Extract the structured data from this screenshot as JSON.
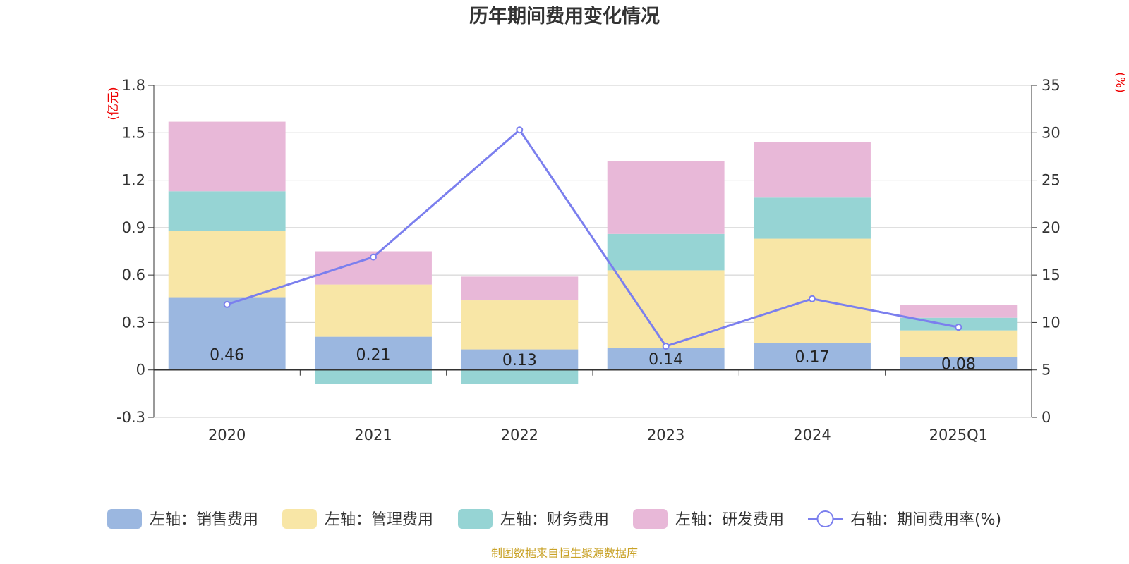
{
  "chart_data": {
    "type": "bar",
    "title": "历年期间费用变化情况",
    "categories": [
      "2020",
      "2021",
      "2022",
      "2023",
      "2024",
      "2025Q1"
    ],
    "left_axis": {
      "unit": "(亿元)",
      "ylim": [
        -0.3,
        1.8
      ],
      "ticks": [
        "-0.3",
        "0",
        "0.3",
        "0.6",
        "0.9",
        "1.2",
        "1.5",
        "1.8"
      ]
    },
    "right_axis": {
      "unit": "(%)",
      "ylim": [
        0,
        35
      ],
      "ticks": [
        "0",
        "5",
        "10",
        "15",
        "20",
        "25",
        "30",
        "35"
      ]
    },
    "series": [
      {
        "name": "左轴：销售费用",
        "type": "bar",
        "color": "#9bb7e0",
        "values": [
          0.46,
          0.21,
          0.13,
          0.14,
          0.17,
          0.08
        ]
      },
      {
        "name": "左轴：管理费用",
        "type": "bar",
        "color": "#f8e6a6",
        "values": [
          0.42,
          0.33,
          0.31,
          0.49,
          0.66,
          0.17
        ]
      },
      {
        "name": "左轴：财务费用",
        "type": "bar",
        "color": "#96d4d4",
        "values": [
          0.25,
          -0.09,
          -0.09,
          0.23,
          0.26,
          0.08
        ]
      },
      {
        "name": "左轴：研发费用",
        "type": "bar",
        "color": "#e8b8d8",
        "values": [
          0.44,
          0.21,
          0.15,
          0.46,
          0.35,
          0.08
        ]
      },
      {
        "name": "右轴：期间费用率(%)",
        "type": "line",
        "axis": "right",
        "color": "#7b7fee",
        "values": [
          11.9,
          16.9,
          30.3,
          7.5,
          12.5,
          9.5
        ]
      }
    ],
    "data_labels": [
      "0.46",
      "0.21",
      "0.13",
      "0.14",
      "0.17",
      "0.08"
    ]
  },
  "source_note": "制图数据来自恒生聚源数据库"
}
